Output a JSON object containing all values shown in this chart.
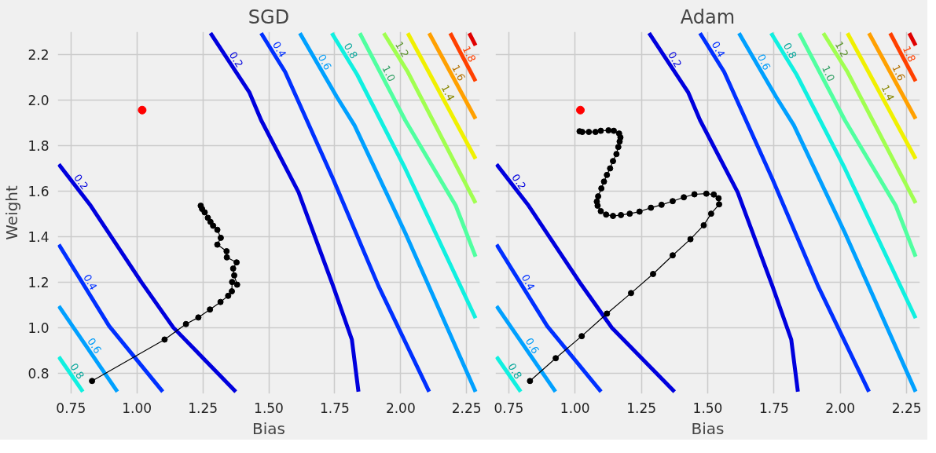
{
  "chart_data": [
    {
      "type": "line",
      "title": "SGD",
      "xlabel": "Bias",
      "ylabel": "Weight",
      "xlim": [
        0.7,
        2.3
      ],
      "ylim": [
        0.71,
        2.3
      ],
      "xticks": [
        {
          "value": 0.75,
          "label": "0.75"
        },
        {
          "value": 1.0,
          "label": "1.00"
        },
        {
          "value": 1.25,
          "label": "1.25"
        },
        {
          "value": 1.5,
          "label": "1.50"
        },
        {
          "value": 1.75,
          "label": "1.75"
        },
        {
          "value": 2.0,
          "label": "2.00"
        },
        {
          "value": 2.25,
          "label": "2.25"
        }
      ],
      "yticks": [
        {
          "value": 0.8,
          "label": "0.8"
        },
        {
          "value": 1.0,
          "label": "1.0"
        },
        {
          "value": 1.2,
          "label": "1.2"
        },
        {
          "value": 1.4,
          "label": "1.4"
        },
        {
          "value": 1.6,
          "label": "1.6"
        },
        {
          "value": 1.8,
          "label": "1.8"
        },
        {
          "value": 2.0,
          "label": "2.0"
        },
        {
          "value": 2.2,
          "label": "2.2"
        }
      ],
      "grid": true,
      "series": [
        {
          "name": "0.2",
          "type": "line",
          "color": "#0000dd",
          "x": [
            0.704,
            0.825,
            1.017,
            1.138,
            1.375
          ],
          "values": [
            1.718,
            1.536,
            1.2,
            1.001,
            0.719
          ]
        },
        {
          "name": "0.2",
          "type": "line",
          "color": "#0000dd",
          "x": [
            1.279,
            1.426,
            1.471,
            1.613,
            1.744,
            1.815,
            1.84
          ],
          "values": [
            2.294,
            2.035,
            1.912,
            1.595,
            1.183,
            0.948,
            0.719
          ]
        },
        {
          "name": "0.4",
          "type": "line",
          "color": "#0030ff",
          "x": [
            0.704,
            0.895,
            1.098
          ],
          "values": [
            1.365,
            1.007,
            0.719
          ]
        },
        {
          "name": "0.4",
          "type": "line",
          "color": "#0030ff",
          "x": [
            1.471,
            1.562,
            1.744,
            1.916,
            2.108
          ],
          "values": [
            2.294,
            2.124,
            1.653,
            1.183,
            0.719
          ]
        },
        {
          "name": "0.6",
          "type": "line",
          "color": "#00a0ff",
          "x": [
            0.704,
            0.926
          ],
          "values": [
            1.095,
            0.719
          ]
        },
        {
          "name": "0.6",
          "type": "line",
          "color": "#00a0ff",
          "x": [
            1.618,
            1.759,
            1.825,
            2.017,
            2.284
          ],
          "values": [
            2.294,
            2.012,
            1.889,
            1.418,
            0.719
          ]
        },
        {
          "name": "0.8",
          "type": "line",
          "color": "#10f0e0",
          "x": [
            0.704,
            0.795
          ],
          "values": [
            0.872,
            0.719
          ]
        },
        {
          "name": "0.8",
          "type": "line",
          "color": "#10f0e0",
          "x": [
            1.739,
            1.835,
            2.017,
            2.284
          ],
          "values": [
            2.294,
            2.112,
            1.7,
            1.042
          ]
        },
        {
          "name": "1.0",
          "type": "line",
          "color": "#50ffa0",
          "x": [
            1.845,
            2.017,
            2.209,
            2.284
          ],
          "values": [
            2.294,
            1.912,
            1.536,
            1.312
          ]
        },
        {
          "name": "1.2",
          "type": "line",
          "color": "#a0ff50",
          "x": [
            1.936,
            2.027,
            2.284
          ],
          "values": [
            2.294,
            2.124,
            1.548
          ]
        },
        {
          "name": "1.4",
          "type": "line",
          "color": "#f0f000",
          "x": [
            2.027,
            2.284
          ],
          "values": [
            2.294,
            1.742
          ]
        },
        {
          "name": "1.6",
          "type": "line",
          "color": "#ffa000",
          "x": [
            2.108,
            2.284
          ],
          "values": [
            2.294,
            1.918
          ]
        },
        {
          "name": "1.8",
          "type": "line",
          "color": "#ff4000",
          "x": [
            2.188,
            2.284
          ],
          "values": [
            2.294,
            2.083
          ]
        },
        {
          "type": "line",
          "color": "#e00000",
          "x": [
            2.26,
            2.284
          ],
          "values": [
            2.294,
            2.24
          ]
        },
        {
          "type": "scatter",
          "color": "#ff0000",
          "x": [
            1.02
          ],
          "values": [
            1.956
          ]
        },
        {
          "type": "line",
          "color": "#000000",
          "marker": "circle",
          "x": [
            0.83,
            1.105,
            1.186,
            1.233,
            1.277,
            1.317,
            1.346,
            1.36,
            1.361,
            1.38,
            1.369,
            1.365,
            1.378,
            1.341,
            1.34,
            1.305,
            1.318,
            1.305,
            1.289,
            1.279,
            1.269,
            1.257,
            1.247,
            1.242
          ],
          "values": [
            0.766,
            0.948,
            1.016,
            1.045,
            1.08,
            1.113,
            1.14,
            1.16,
            1.201,
            1.189,
            1.23,
            1.26,
            1.287,
            1.309,
            1.336,
            1.365,
            1.395,
            1.43,
            1.448,
            1.465,
            1.483,
            1.507,
            1.522,
            1.536
          ]
        }
      ]
    },
    {
      "type": "line",
      "title": "Adam",
      "xlabel": "Bias",
      "xlim": [
        0.7,
        2.3
      ],
      "ylim": [
        0.71,
        2.3
      ],
      "tick_labels": "x",
      "xticks": [
        {
          "value": 0.75,
          "label": "0.75"
        },
        {
          "value": 1.0,
          "label": "1.00"
        },
        {
          "value": 1.25,
          "label": "1.25"
        },
        {
          "value": 1.5,
          "label": "1.50"
        },
        {
          "value": 1.75,
          "label": "1.75"
        },
        {
          "value": 2.0,
          "label": "2.00"
        },
        {
          "value": 2.25,
          "label": "2.25"
        }
      ],
      "yticks": [
        0.8,
        1.0,
        1.2,
        1.4,
        1.6,
        1.8,
        2.0,
        2.2
      ],
      "grid": true,
      "series": [
        {
          "name": "0.2",
          "type": "line",
          "color": "#0000dd",
          "x": [
            0.704,
            0.825,
            1.017,
            1.138,
            1.375
          ],
          "values": [
            1.718,
            1.536,
            1.2,
            1.001,
            0.719
          ]
        },
        {
          "name": "0.2",
          "type": "line",
          "color": "#0000dd",
          "x": [
            1.279,
            1.426,
            1.471,
            1.613,
            1.744,
            1.815,
            1.84
          ],
          "values": [
            2.294,
            2.035,
            1.912,
            1.595,
            1.183,
            0.948,
            0.719
          ]
        },
        {
          "name": "0.4",
          "type": "line",
          "color": "#0030ff",
          "x": [
            0.704,
            0.895,
            1.098
          ],
          "values": [
            1.365,
            1.007,
            0.719
          ]
        },
        {
          "name": "0.4",
          "type": "line",
          "color": "#0030ff",
          "x": [
            1.471,
            1.562,
            1.744,
            1.916,
            2.108
          ],
          "values": [
            2.294,
            2.124,
            1.653,
            1.183,
            0.719
          ]
        },
        {
          "name": "0.6",
          "type": "line",
          "color": "#00a0ff",
          "x": [
            0.704,
            0.926
          ],
          "values": [
            1.095,
            0.719
          ]
        },
        {
          "name": "0.6",
          "type": "line",
          "color": "#00a0ff",
          "x": [
            1.618,
            1.759,
            1.825,
            2.017,
            2.284
          ],
          "values": [
            2.294,
            2.012,
            1.889,
            1.418,
            0.719
          ]
        },
        {
          "name": "0.8",
          "type": "line",
          "color": "#10f0e0",
          "x": [
            0.704,
            0.795
          ],
          "values": [
            0.872,
            0.719
          ]
        },
        {
          "name": "0.8",
          "type": "line",
          "color": "#10f0e0",
          "x": [
            1.739,
            1.835,
            2.017,
            2.284
          ],
          "values": [
            2.294,
            2.112,
            1.7,
            1.042
          ]
        },
        {
          "name": "1.0",
          "type": "line",
          "color": "#50ffa0",
          "x": [
            1.845,
            2.017,
            2.209,
            2.284
          ],
          "values": [
            2.294,
            1.912,
            1.536,
            1.312
          ]
        },
        {
          "name": "1.2",
          "type": "line",
          "color": "#a0ff50",
          "x": [
            1.936,
            2.027,
            2.284
          ],
          "values": [
            2.294,
            2.124,
            1.548
          ]
        },
        {
          "name": "1.4",
          "type": "line",
          "color": "#f0f000",
          "x": [
            2.027,
            2.284
          ],
          "values": [
            2.294,
            1.742
          ]
        },
        {
          "name": "1.6",
          "type": "line",
          "color": "#ffa000",
          "x": [
            2.108,
            2.284
          ],
          "values": [
            2.294,
            1.918
          ]
        },
        {
          "name": "1.8",
          "type": "line",
          "color": "#ff4000",
          "x": [
            2.188,
            2.284
          ],
          "values": [
            2.294,
            2.083
          ]
        },
        {
          "type": "line",
          "color": "#e00000",
          "x": [
            2.26,
            2.284
          ],
          "values": [
            2.294,
            2.24
          ]
        },
        {
          "type": "scatter",
          "color": "#ff0000",
          "x": [
            1.02
          ],
          "values": [
            1.956
          ]
        },
        {
          "type": "line",
          "color": "#000000",
          "marker": "circle",
          "x": [
            0.83,
            0.927,
            1.025,
            1.12,
            1.211,
            1.294,
            1.368,
            1.435,
            1.485,
            1.513,
            1.543,
            1.541,
            1.523,
            1.495,
            1.45,
            1.41,
            1.368,
            1.326,
            1.286,
            1.243,
            1.206,
            1.173,
            1.143,
            1.117,
            1.097,
            1.085,
            1.082,
            1.087,
            1.099,
            1.109,
            1.12,
            1.132,
            1.143,
            1.156,
            1.163,
            1.168,
            1.171,
            1.166,
            1.146,
            1.126,
            1.097,
            1.077,
            1.052,
            1.027,
            1.017
          ],
          "values": [
            0.766,
            0.866,
            0.963,
            1.062,
            1.152,
            1.236,
            1.318,
            1.389,
            1.45,
            1.501,
            1.542,
            1.569,
            1.585,
            1.589,
            1.586,
            1.573,
            1.556,
            1.54,
            1.527,
            1.51,
            1.501,
            1.495,
            1.491,
            1.497,
            1.512,
            1.536,
            1.554,
            1.577,
            1.612,
            1.642,
            1.671,
            1.7,
            1.732,
            1.763,
            1.794,
            1.818,
            1.836,
            1.853,
            1.865,
            1.867,
            1.865,
            1.86,
            1.86,
            1.86,
            1.863
          ]
        }
      ]
    }
  ]
}
